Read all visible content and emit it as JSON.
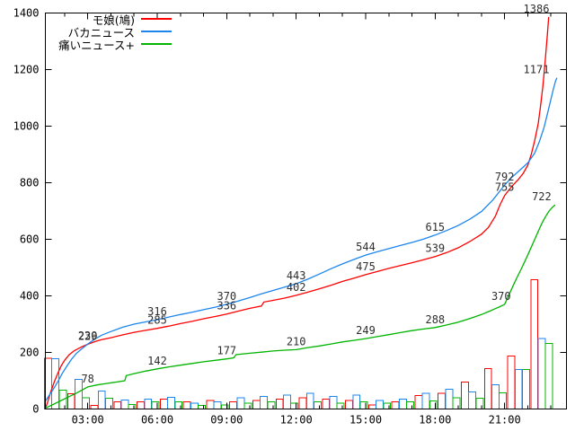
{
  "page": {
    "background": "#ffffff"
  },
  "chart_data": {
    "type": "line",
    "title": "",
    "grid": false,
    "legend_position": "top-left-inside",
    "x_axis": {
      "kind": "time",
      "domain_hours": [
        1.17,
        23.67
      ],
      "tick_hours": [
        3,
        6,
        9,
        12,
        15,
        18,
        21
      ],
      "tick_labels": [
        "03:00",
        "06:00",
        "09:00",
        "12:00",
        "15:00",
        "18:00",
        "21:00"
      ],
      "minor_tick_every_hours": 1
    },
    "y_axis": {
      "range": [
        0,
        1400
      ],
      "tick_values": [
        0,
        200,
        400,
        600,
        800,
        1000,
        1200,
        1400
      ],
      "tick_labels": [
        "0",
        "200",
        "400",
        "600",
        "800",
        "1000",
        "1200",
        "1400"
      ]
    },
    "series": [
      {
        "name": "モ娘(鳩)",
        "color": "#ff0000",
        "style": "cumulative-line",
        "points": [
          [
            1.17,
            2
          ],
          [
            1.25,
            20
          ],
          [
            1.4,
            60
          ],
          [
            1.55,
            95
          ],
          [
            1.7,
            125
          ],
          [
            1.85,
            152
          ],
          [
            2.0,
            172
          ],
          [
            2.2,
            192
          ],
          [
            2.4,
            205
          ],
          [
            2.6,
            214
          ],
          [
            2.8,
            222
          ],
          [
            3.0,
            229
          ],
          [
            3.3,
            238
          ],
          [
            3.6,
            245
          ],
          [
            4.0,
            252
          ],
          [
            4.5,
            262
          ],
          [
            5.0,
            271
          ],
          [
            5.5,
            278
          ],
          [
            6.0,
            285
          ],
          [
            6.5,
            293
          ],
          [
            7.0,
            302
          ],
          [
            7.5,
            310
          ],
          [
            8.0,
            319
          ],
          [
            8.5,
            327
          ],
          [
            9.0,
            336
          ],
          [
            9.5,
            346
          ],
          [
            10.0,
            356
          ],
          [
            10.5,
            364
          ],
          [
            10.6,
            378
          ],
          [
            11.0,
            384
          ],
          [
            11.5,
            392
          ],
          [
            12.0,
            402
          ],
          [
            12.5,
            413
          ],
          [
            13.0,
            425
          ],
          [
            13.5,
            437
          ],
          [
            14.0,
            451
          ],
          [
            14.5,
            463
          ],
          [
            15.0,
            475
          ],
          [
            15.5,
            486
          ],
          [
            16.0,
            497
          ],
          [
            16.5,
            507
          ],
          [
            17.0,
            517
          ],
          [
            17.5,
            528
          ],
          [
            18.0,
            539
          ],
          [
            18.5,
            553
          ],
          [
            19.0,
            570
          ],
          [
            19.5,
            592
          ],
          [
            20.0,
            618
          ],
          [
            20.3,
            642
          ],
          [
            20.6,
            682
          ],
          [
            20.8,
            722
          ],
          [
            21.0,
            755
          ],
          [
            21.2,
            776
          ],
          [
            21.4,
            795
          ],
          [
            21.6,
            812
          ],
          [
            21.8,
            833
          ],
          [
            22.0,
            862
          ],
          [
            22.15,
            900
          ],
          [
            22.3,
            950
          ],
          [
            22.45,
            1010
          ],
          [
            22.55,
            1070
          ],
          [
            22.65,
            1140
          ],
          [
            22.75,
            1230
          ],
          [
            22.85,
            1330
          ],
          [
            22.9,
            1386
          ]
        ],
        "value_labels": [
          [
            3,
            229
          ],
          [
            6,
            285
          ],
          [
            9,
            336
          ],
          [
            12,
            402
          ],
          [
            15,
            475
          ],
          [
            18,
            539
          ],
          [
            21,
            755
          ],
          [
            22.37,
            1386
          ]
        ]
      },
      {
        "name": "バカニュース",
        "color": "#1c86ee",
        "style": "cumulative-line",
        "points": [
          [
            1.17,
            28
          ],
          [
            1.3,
            44
          ],
          [
            1.45,
            62
          ],
          [
            1.6,
            82
          ],
          [
            1.75,
            103
          ],
          [
            1.9,
            126
          ],
          [
            2.1,
            152
          ],
          [
            2.3,
            176
          ],
          [
            2.5,
            196
          ],
          [
            2.7,
            210
          ],
          [
            2.85,
            220
          ],
          [
            3.0,
            230
          ],
          [
            3.3,
            247
          ],
          [
            3.6,
            261
          ],
          [
            4.0,
            274
          ],
          [
            4.5,
            289
          ],
          [
            5.0,
            300
          ],
          [
            5.5,
            308
          ],
          [
            6.0,
            316
          ],
          [
            6.5,
            325
          ],
          [
            7.0,
            334
          ],
          [
            7.5,
            342
          ],
          [
            8.0,
            351
          ],
          [
            8.5,
            360
          ],
          [
            9.0,
            370
          ],
          [
            9.5,
            382
          ],
          [
            10.0,
            394
          ],
          [
            10.5,
            407
          ],
          [
            11.0,
            419
          ],
          [
            11.5,
            431
          ],
          [
            12.0,
            443
          ],
          [
            12.5,
            459
          ],
          [
            13.0,
            477
          ],
          [
            13.5,
            496
          ],
          [
            14.0,
            513
          ],
          [
            14.5,
            529
          ],
          [
            15.0,
            544
          ],
          [
            15.5,
            556
          ],
          [
            16.0,
            567
          ],
          [
            16.5,
            578
          ],
          [
            17.0,
            589
          ],
          [
            17.5,
            601
          ],
          [
            18.0,
            615
          ],
          [
            18.5,
            631
          ],
          [
            19.0,
            649
          ],
          [
            19.5,
            671
          ],
          [
            20.0,
            698
          ],
          [
            20.5,
            740
          ],
          [
            21.0,
            792
          ],
          [
            21.3,
            818
          ],
          [
            21.6,
            840
          ],
          [
            22.0,
            870
          ],
          [
            22.3,
            905
          ],
          [
            22.5,
            945
          ],
          [
            22.7,
            995
          ],
          [
            22.85,
            1045
          ],
          [
            23.0,
            1095
          ],
          [
            23.1,
            1130
          ],
          [
            23.2,
            1160
          ],
          [
            23.26,
            1171
          ]
        ],
        "value_labels": [
          [
            3,
            230
          ],
          [
            6,
            316
          ],
          [
            9,
            370
          ],
          [
            12,
            443
          ],
          [
            15,
            544
          ],
          [
            18,
            615
          ],
          [
            21,
            792
          ],
          [
            22.37,
            1171
          ]
        ]
      },
      {
        "name": "痛いニュース+",
        "color": "#00b400",
        "style": "cumulative-line",
        "points": [
          [
            1.17,
            3
          ],
          [
            1.5,
            16
          ],
          [
            2.0,
            36
          ],
          [
            2.5,
            56
          ],
          [
            3.0,
            78
          ],
          [
            3.4,
            85
          ],
          [
            3.8,
            90
          ],
          [
            4.2,
            95
          ],
          [
            4.6,
            100
          ],
          [
            4.66,
            118
          ],
          [
            5.0,
            125
          ],
          [
            5.5,
            134
          ],
          [
            6.0,
            142
          ],
          [
            6.5,
            149
          ],
          [
            7.0,
            155
          ],
          [
            7.5,
            161
          ],
          [
            8.0,
            167
          ],
          [
            8.5,
            172
          ],
          [
            9.0,
            177
          ],
          [
            9.3,
            181
          ],
          [
            9.4,
            192
          ],
          [
            10.0,
            197
          ],
          [
            10.5,
            201
          ],
          [
            11.0,
            205
          ],
          [
            11.5,
            208
          ],
          [
            12.0,
            210
          ],
          [
            12.5,
            217
          ],
          [
            13.0,
            223
          ],
          [
            13.5,
            230
          ],
          [
            14.0,
            237
          ],
          [
            14.5,
            243
          ],
          [
            15.0,
            249
          ],
          [
            15.5,
            256
          ],
          [
            16.0,
            263
          ],
          [
            16.5,
            270
          ],
          [
            17.0,
            277
          ],
          [
            17.5,
            283
          ],
          [
            18.0,
            288
          ],
          [
            18.5,
            297
          ],
          [
            19.0,
            307
          ],
          [
            19.5,
            320
          ],
          [
            20.0,
            334
          ],
          [
            20.3,
            344
          ],
          [
            20.6,
            355
          ],
          [
            20.8,
            362
          ],
          [
            21.0,
            370
          ],
          [
            21.1,
            388
          ],
          [
            21.25,
            415
          ],
          [
            21.4,
            442
          ],
          [
            21.55,
            468
          ],
          [
            21.7,
            492
          ],
          [
            21.85,
            518
          ],
          [
            22.0,
            545
          ],
          [
            22.15,
            572
          ],
          [
            22.3,
            600
          ],
          [
            22.45,
            628
          ],
          [
            22.6,
            655
          ],
          [
            22.75,
            678
          ],
          [
            22.9,
            698
          ],
          [
            23.05,
            712
          ],
          [
            23.18,
            722
          ]
        ],
        "value_labels": [
          [
            3,
            78
          ],
          [
            6,
            142
          ],
          [
            9,
            177
          ],
          [
            12,
            210
          ],
          [
            15,
            249
          ],
          [
            18,
            288
          ],
          [
            20.85,
            370
          ],
          [
            22.6,
            722
          ]
        ]
      }
    ],
    "hourly_bars": {
      "style": "hollow-outline",
      "clusters": 22,
      "bar_series": [
        {
          "name": "モ娘(鳩)",
          "color": "#ff0000",
          "values": [
            180,
            54,
            12,
            25,
            25,
            35,
            25,
            30,
            25,
            30,
            35,
            40,
            35,
            30,
            15,
            25,
            48,
            55,
            95,
            143,
            187,
            457
          ]
        },
        {
          "name": "バカニュース",
          "color": "#1c86ee",
          "values": [
            177,
            105,
            63,
            32,
            35,
            41,
            20,
            25,
            40,
            45,
            50,
            55,
            45,
            50,
            30,
            35,
            55,
            70,
            60,
            86,
            140,
            250
          ]
        },
        {
          "name": "痛いニュース+",
          "color": "#00b400",
          "values": [
            66,
            40,
            38,
            16,
            25,
            25,
            12,
            15,
            20,
            25,
            20,
            25,
            20,
            25,
            20,
            25,
            28,
            40,
            38,
            57,
            140,
            232
          ]
        }
      ]
    },
    "label_color": "#2e2e2e",
    "axis_color": "#000000"
  }
}
